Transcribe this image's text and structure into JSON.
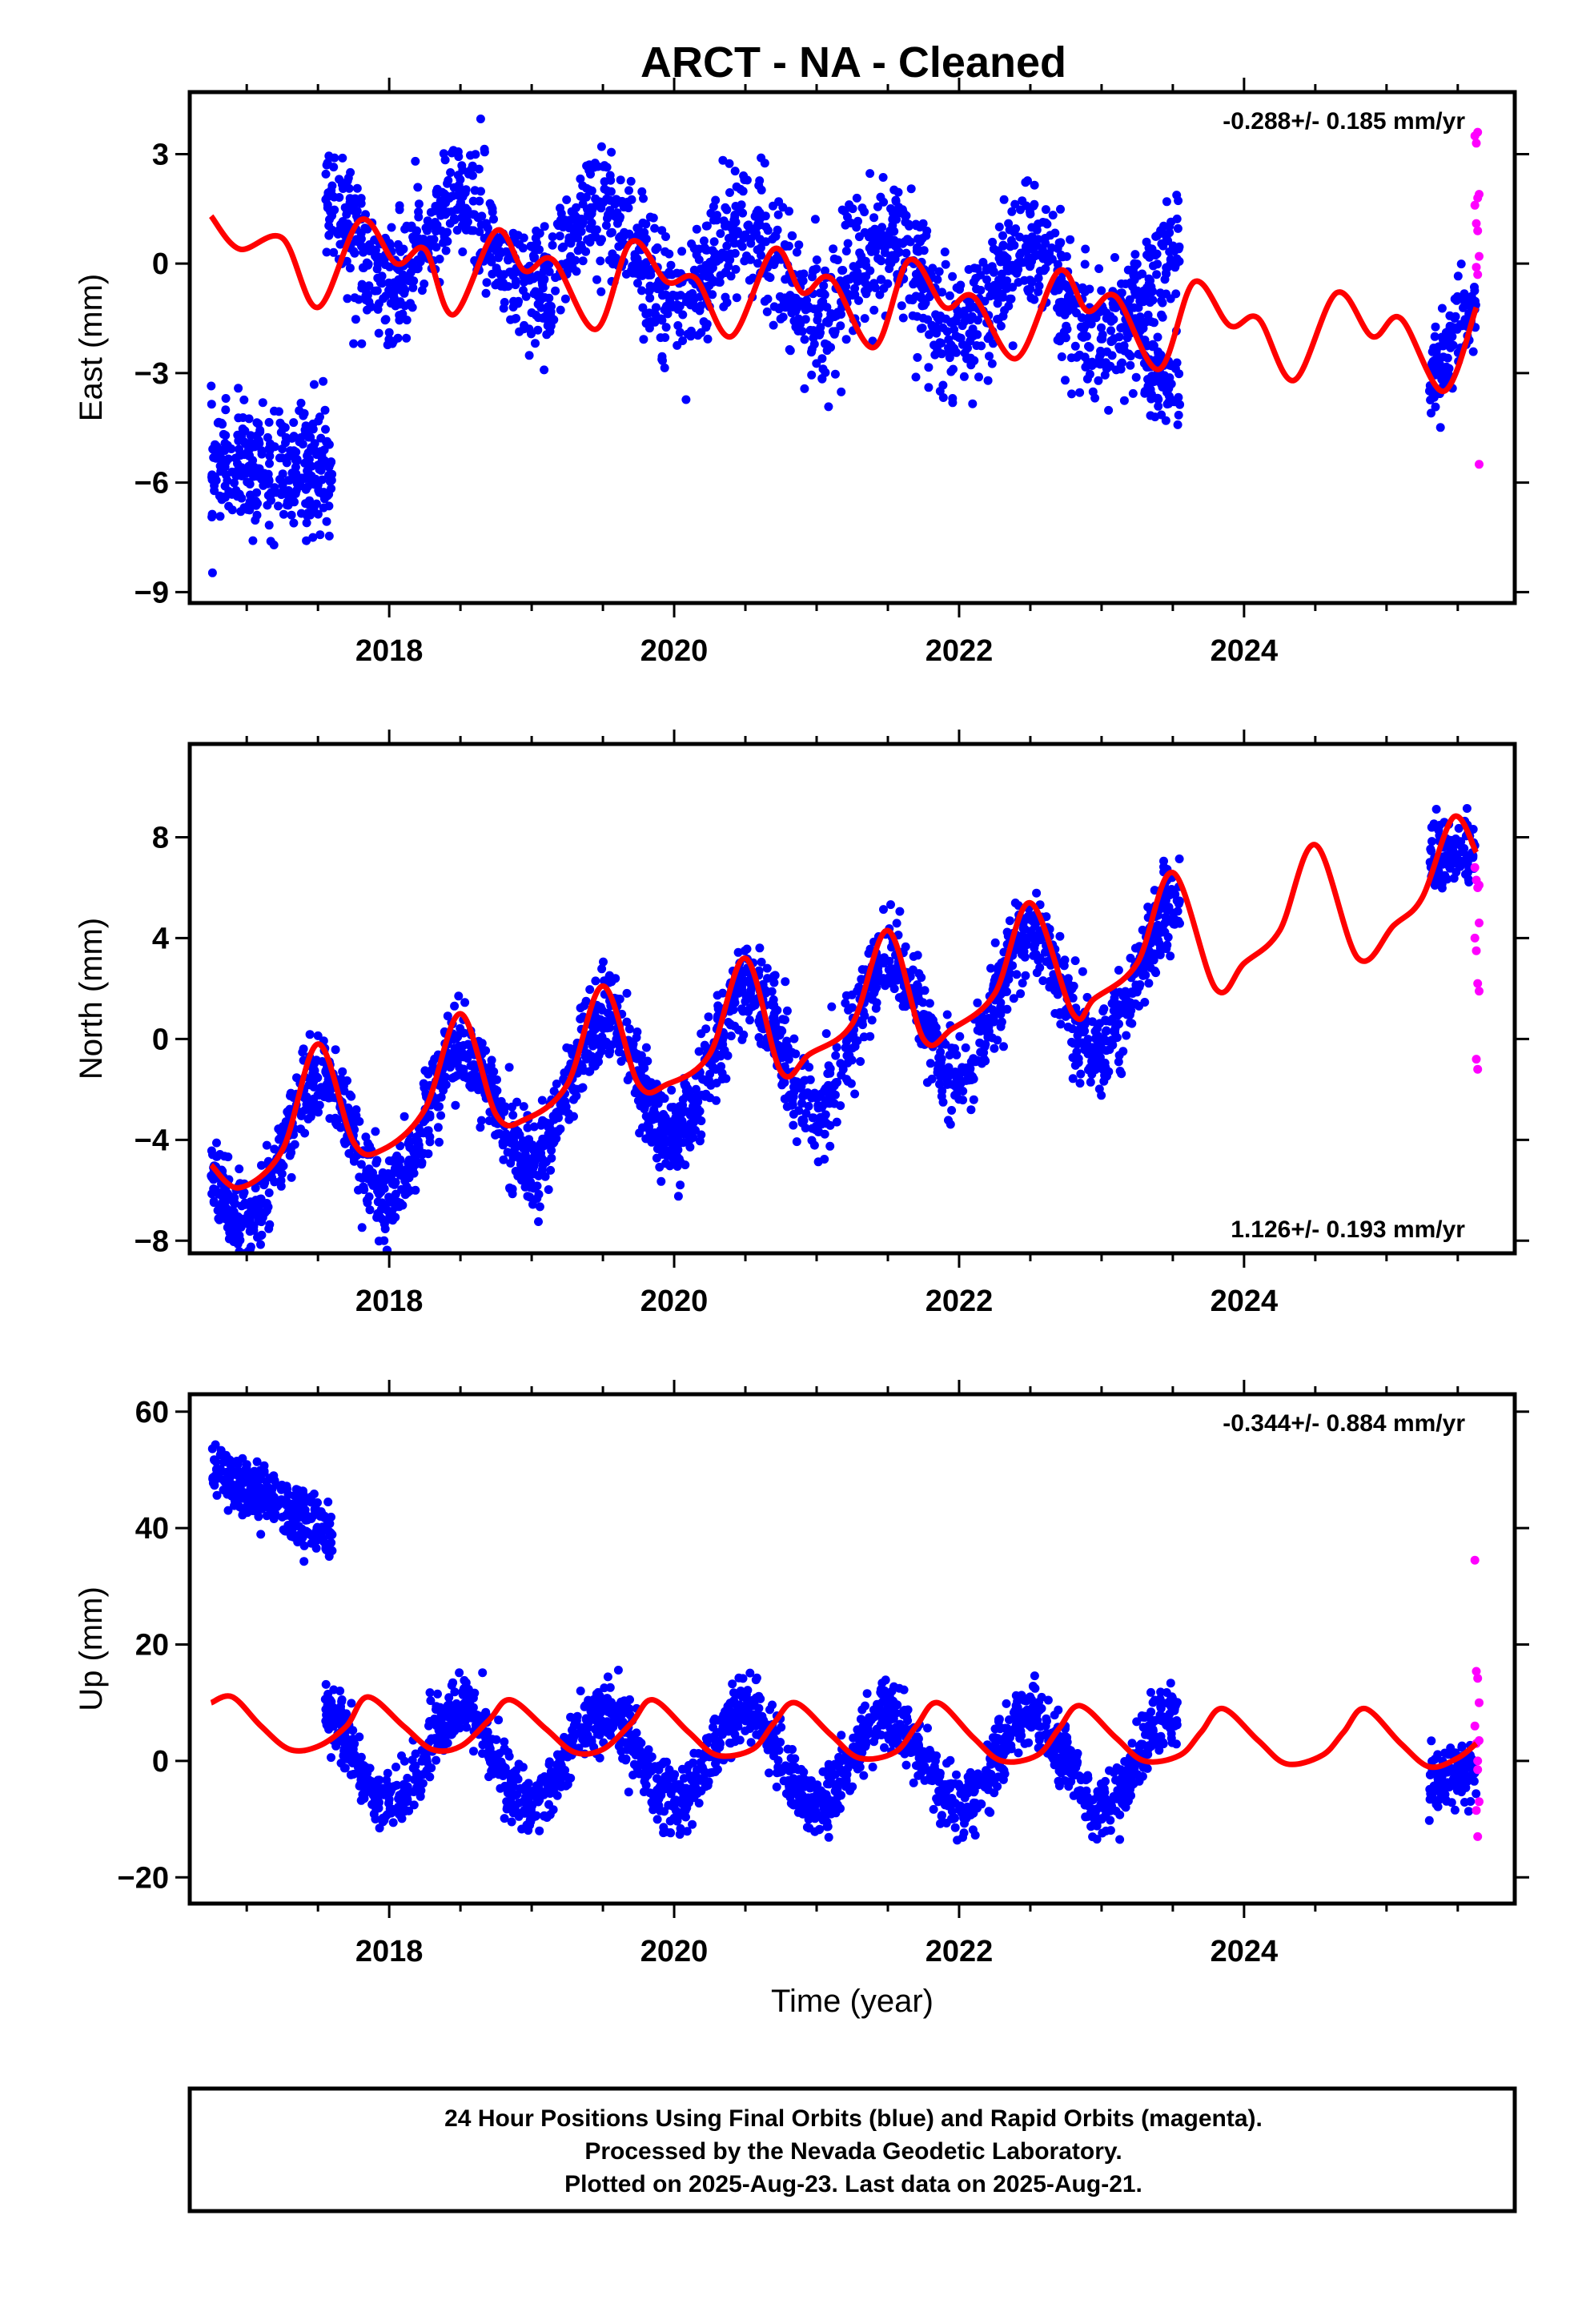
{
  "title": "ARCT  - NA - Cleaned",
  "footer": {
    "lines": [
      "24 Hour Positions Using Final Orbits (blue) and Rapid Orbits (magenta).",
      "Processed by the Nevada Geodetic Laboratory.",
      "Plotted on 2025-Aug-23. Last data on 2025-Aug-21."
    ]
  },
  "colors": {
    "final": "#0000ff",
    "rapid": "#ff00ff",
    "model": "#ff0000"
  },
  "chart_data": [
    {
      "type": "scatter",
      "id": "east",
      "ylabel": "East (mm)",
      "xlabel": "",
      "xlim": [
        2016.6,
        2025.9
      ],
      "ylim": [
        -9.3,
        4.7
      ],
      "xticks": [
        2018,
        2020,
        2022,
        2024
      ],
      "yticks": [
        3,
        0,
        -3,
        -6,
        -9
      ],
      "rate_text": "-0.288+/- 0.185 mm/yr",
      "rate_position": "top-right",
      "series": [
        {
          "kind": "final-orbits",
          "segments": [
            {
              "x": [
                2016.75,
                2017.6
              ],
              "base": [
                -5.6,
                -5.6
              ],
              "spread": 1.5,
              "annual": 0,
              "n": 320
            },
            {
              "x": [
                2017.55,
                2023.55
              ],
              "base": [
                0.8,
                -1.2
              ],
              "spread": 1.6,
              "annual": 1.2,
              "n": 1900
            },
            {
              "x": [
                2023.3,
                2023.55
              ],
              "base": [
                -2.5,
                -3.8
              ],
              "spread": 1.0,
              "annual": 0,
              "n": 90
            },
            {
              "x": [
                2025.3,
                2025.63
              ],
              "base": [
                -3.2,
                -0.8
              ],
              "spread": 1.0,
              "annual": 0,
              "n": 110
            }
          ]
        },
        {
          "kind": "rapid-orbits",
          "x": [
            2025.62,
            2025.63,
            2025.64,
            2025.65,
            2025.62,
            2025.63,
            2025.64,
            2025.65,
            2025.63,
            2025.64,
            2025.65,
            2025.64
          ],
          "y": [
            3.5,
            3.3,
            3.6,
            1.9,
            1.6,
            1.1,
            0.9,
            0.2,
            -0.1,
            -0.3,
            -5.5,
            1.8
          ]
        },
        {
          "kind": "model",
          "points": [
            [
              2016.75,
              1.3
            ],
            [
              2016.95,
              0.4
            ],
            [
              2017.25,
              0.7
            ],
            [
              2017.5,
              -1.2
            ],
            [
              2017.8,
              1.2
            ],
            [
              2018.05,
              0.0
            ],
            [
              2018.25,
              0.4
            ],
            [
              2018.45,
              -1.4
            ],
            [
              2018.75,
              0.9
            ],
            [
              2018.95,
              -0.2
            ],
            [
              2019.15,
              0.1
            ],
            [
              2019.45,
              -1.8
            ],
            [
              2019.7,
              0.6
            ],
            [
              2019.95,
              -0.5
            ],
            [
              2020.15,
              -0.4
            ],
            [
              2020.4,
              -2.0
            ],
            [
              2020.7,
              0.4
            ],
            [
              2020.9,
              -0.8
            ],
            [
              2021.1,
              -0.4
            ],
            [
              2021.4,
              -2.3
            ],
            [
              2021.65,
              0.1
            ],
            [
              2021.9,
              -1.2
            ],
            [
              2022.1,
              -0.9
            ],
            [
              2022.4,
              -2.6
            ],
            [
              2022.7,
              -0.2
            ],
            [
              2022.9,
              -1.3
            ],
            [
              2023.1,
              -0.9
            ],
            [
              2023.4,
              -2.9
            ],
            [
              2023.65,
              -0.5
            ],
            [
              2023.9,
              -1.7
            ],
            [
              2024.1,
              -1.5
            ],
            [
              2024.35,
              -3.2
            ],
            [
              2024.65,
              -0.8
            ],
            [
              2024.9,
              -2.0
            ],
            [
              2025.1,
              -1.5
            ],
            [
              2025.4,
              -3.5
            ],
            [
              2025.63,
              -1.2
            ]
          ]
        }
      ]
    },
    {
      "type": "scatter",
      "id": "north",
      "ylabel": "North (mm)",
      "xlabel": "",
      "xlim": [
        2016.6,
        2025.9
      ],
      "ylim": [
        -8.5,
        11.7
      ],
      "xticks": [
        2018,
        2020,
        2022,
        2024
      ],
      "yticks": [
        8,
        4,
        0,
        -4,
        -8
      ],
      "rate_text": "1.126+/- 0.193 mm/yr",
      "rate_position": "bottom-right",
      "series": [
        {
          "kind": "final-orbits",
          "segments": [
            {
              "x": [
                2016.75,
                2023.55
              ],
              "base": [
                -5.0,
                2.8
              ],
              "spread": 1.6,
              "annual": 2.6,
              "n": 2400
            },
            {
              "x": [
                2025.3,
                2025.63
              ],
              "base": [
                7.2,
                7.6
              ],
              "spread": 1.2,
              "annual": 0,
              "n": 110
            }
          ]
        },
        {
          "kind": "rapid-orbits",
          "x": [
            2025.62,
            2025.63,
            2025.64,
            2025.65,
            2025.62,
            2025.63,
            2025.64,
            2025.65,
            2025.63,
            2025.64,
            2025.65
          ],
          "y": [
            6.8,
            6.3,
            6.0,
            4.6,
            4.0,
            3.5,
            2.2,
            1.9,
            -0.8,
            -1.2,
            6.1
          ]
        },
        {
          "kind": "model",
          "points": [
            [
              2016.75,
              -5.0
            ],
            [
              2016.95,
              -5.9
            ],
            [
              2017.25,
              -4.4
            ],
            [
              2017.5,
              -0.2
            ],
            [
              2017.75,
              -4.1
            ],
            [
              2017.95,
              -4.4
            ],
            [
              2018.25,
              -2.8
            ],
            [
              2018.5,
              1.0
            ],
            [
              2018.75,
              -3.0
            ],
            [
              2018.95,
              -3.2
            ],
            [
              2019.25,
              -1.8
            ],
            [
              2019.5,
              2.1
            ],
            [
              2019.75,
              -1.8
            ],
            [
              2019.95,
              -1.8
            ],
            [
              2020.25,
              -0.6
            ],
            [
              2020.5,
              3.2
            ],
            [
              2020.75,
              -1.3
            ],
            [
              2020.95,
              -0.6
            ],
            [
              2021.25,
              0.6
            ],
            [
              2021.5,
              4.3
            ],
            [
              2021.75,
              0.0
            ],
            [
              2021.95,
              0.4
            ],
            [
              2022.25,
              1.8
            ],
            [
              2022.5,
              5.4
            ],
            [
              2022.8,
              1.0
            ],
            [
              2022.95,
              1.6
            ],
            [
              2023.25,
              3.0
            ],
            [
              2023.5,
              6.6
            ],
            [
              2023.8,
              2.0
            ],
            [
              2024.0,
              3.0
            ],
            [
              2024.25,
              4.3
            ],
            [
              2024.5,
              7.7
            ],
            [
              2024.8,
              3.2
            ],
            [
              2025.05,
              4.5
            ],
            [
              2025.25,
              5.6
            ],
            [
              2025.47,
              8.8
            ],
            [
              2025.63,
              7.4
            ]
          ]
        }
      ]
    },
    {
      "type": "scatter",
      "id": "up",
      "ylabel": "Up (mm)",
      "xlabel": "Time (year)",
      "xlim": [
        2016.6,
        2025.9
      ],
      "ylim": [
        -24.5,
        63
      ],
      "xticks": [
        2018,
        2020,
        2022,
        2024
      ],
      "yticks": [
        60,
        40,
        20,
        0,
        -20
      ],
      "rate_text": "-0.344+/- 0.884 mm/yr",
      "rate_position": "top-right",
      "series": [
        {
          "kind": "final-orbits",
          "segments": [
            {
              "x": [
                2016.75,
                2017.6
              ],
              "base": [
                50,
                39
              ],
              "spread": 4.5,
              "annual": 0,
              "n": 320
            },
            {
              "x": [
                2017.55,
                2023.55
              ],
              "base": [
                1.0,
                0.0
              ],
              "spread": 5.0,
              "annual": 8.0,
              "n": 2000
            },
            {
              "x": [
                2025.3,
                2025.63
              ],
              "base": [
                -4.0,
                -2.0
              ],
              "spread": 5.0,
              "annual": 0,
              "n": 110
            }
          ]
        },
        {
          "kind": "rapid-orbits",
          "x": [
            2025.62,
            2025.63,
            2025.64,
            2025.65,
            2025.62,
            2025.63,
            2025.64,
            2025.65,
            2025.63,
            2025.64,
            2025.65,
            2025.64
          ],
          "y": [
            34.5,
            15.4,
            14.2,
            10.0,
            6.0,
            3.0,
            -1.5,
            -7.0,
            -8.5,
            -13.0,
            3.5,
            0.0
          ]
        },
        {
          "kind": "model",
          "points": [
            [
              2016.75,
              10.0
            ],
            [
              2016.9,
              11.0
            ],
            [
              2017.1,
              6.0
            ],
            [
              2017.3,
              2.0
            ],
            [
              2017.5,
              2.5
            ],
            [
              2017.7,
              6.0
            ],
            [
              2017.85,
              11.0
            ],
            [
              2018.1,
              6.0
            ],
            [
              2018.3,
              2.0
            ],
            [
              2018.5,
              2.5
            ],
            [
              2018.7,
              7.0
            ],
            [
              2018.85,
              10.5
            ],
            [
              2019.1,
              5.5
            ],
            [
              2019.3,
              1.5
            ],
            [
              2019.5,
              2.0
            ],
            [
              2019.7,
              6.5
            ],
            [
              2019.85,
              10.5
            ],
            [
              2020.1,
              5.0
            ],
            [
              2020.3,
              1.0
            ],
            [
              2020.55,
              2.0
            ],
            [
              2020.7,
              6.5
            ],
            [
              2020.85,
              10.0
            ],
            [
              2021.1,
              4.5
            ],
            [
              2021.3,
              0.5
            ],
            [
              2021.55,
              1.5
            ],
            [
              2021.7,
              6.0
            ],
            [
              2021.85,
              10.0
            ],
            [
              2022.1,
              4.0
            ],
            [
              2022.3,
              0.0
            ],
            [
              2022.55,
              1.0
            ],
            [
              2022.7,
              5.5
            ],
            [
              2022.85,
              9.5
            ],
            [
              2023.1,
              4.0
            ],
            [
              2023.3,
              0.0
            ],
            [
              2023.55,
              1.0
            ],
            [
              2023.7,
              5.0
            ],
            [
              2023.85,
              9.0
            ],
            [
              2024.1,
              3.5
            ],
            [
              2024.3,
              -0.5
            ],
            [
              2024.55,
              1.0
            ],
            [
              2024.7,
              5.0
            ],
            [
              2024.85,
              9.0
            ],
            [
              2025.1,
              3.0
            ],
            [
              2025.3,
              -1.0
            ],
            [
              2025.5,
              0.5
            ],
            [
              2025.63,
              3.0
            ]
          ]
        }
      ]
    }
  ]
}
